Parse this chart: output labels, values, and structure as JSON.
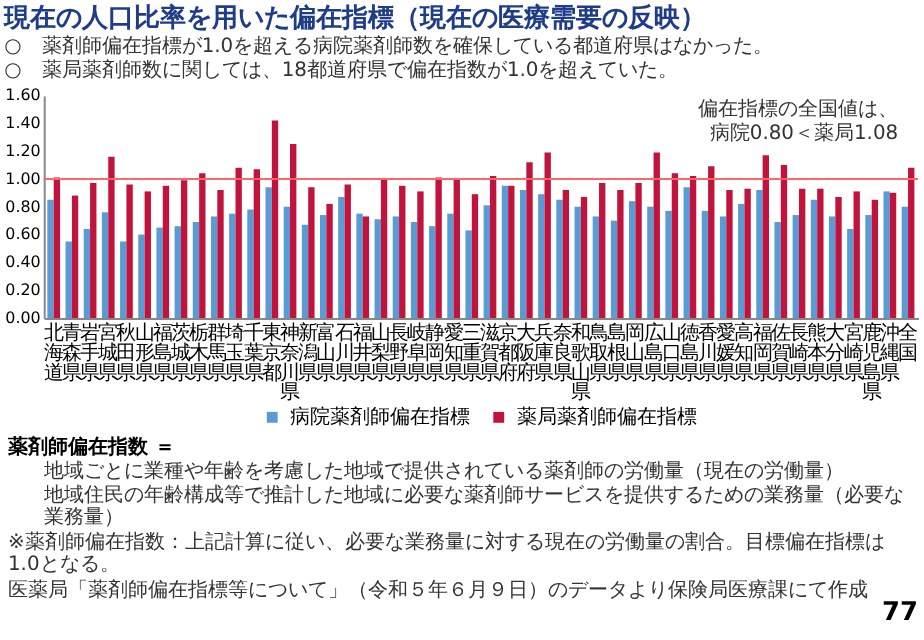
{
  "chart_data": {
    "type": "bar",
    "title": "現在の人口比率を用いた偏在指標（現在の医療需要の反映）",
    "subtitle": [
      "○　薬剤師偏在指標が1.0を超える病院薬剤師数を確保している都道府県はなかった。",
      "○　薬局薬剤師数に関しては、18都道府県で偏在指数が1.0を超えていた。"
    ],
    "categories": [
      "北海道",
      "青森県",
      "岩手県",
      "宮城県",
      "秋田県",
      "山形県",
      "福島県",
      "茨城県",
      "栃木県",
      "群馬県",
      "埼玉県",
      "千葉県",
      "東京都",
      "神奈川県",
      "新潟県",
      "富山県",
      "石川県",
      "福井県",
      "山梨県",
      "長野県",
      "岐阜県",
      "静岡県",
      "愛知県",
      "三重県",
      "滋賀県",
      "京都府",
      "大阪府",
      "兵庫県",
      "奈良県",
      "和歌山県",
      "鳥取県",
      "島根県",
      "岡山県",
      "広島県",
      "山口県",
      "徳島県",
      "香川県",
      "愛媛県",
      "高知県",
      "福岡県",
      "佐賀県",
      "長崎県",
      "熊本県",
      "大分県",
      "宮崎県",
      "鹿児島県",
      "沖縄県",
      "全国"
    ],
    "series": [
      {
        "name": "病院薬剤師偏在指標",
        "color": "#5b9bd5",
        "values": [
          0.85,
          0.55,
          0.64,
          0.76,
          0.55,
          0.6,
          0.65,
          0.66,
          0.69,
          0.73,
          0.75,
          0.78,
          0.94,
          0.8,
          0.67,
          0.74,
          0.87,
          0.75,
          0.71,
          0.73,
          0.69,
          0.66,
          0.75,
          0.63,
          0.81,
          0.95,
          0.92,
          0.89,
          0.85,
          0.8,
          0.73,
          0.7,
          0.84,
          0.8,
          0.77,
          0.94,
          0.77,
          0.73,
          0.82,
          0.92,
          0.69,
          0.74,
          0.85,
          0.73,
          0.64,
          0.74,
          0.91,
          0.8
        ]
      },
      {
        "name": "薬局薬剤師偏在指標",
        "color": "#c0143c",
        "values": [
          1.01,
          0.88,
          0.97,
          1.16,
          0.96,
          0.91,
          0.95,
          0.99,
          1.04,
          0.92,
          1.08,
          1.07,
          1.42,
          1.25,
          0.94,
          0.82,
          0.96,
          0.73,
          1.0,
          0.95,
          0.91,
          1.01,
          1.0,
          0.89,
          1.02,
          0.95,
          1.12,
          1.19,
          0.92,
          0.87,
          0.97,
          0.92,
          0.97,
          1.19,
          1.04,
          1.02,
          1.09,
          0.92,
          0.93,
          1.17,
          1.1,
          0.93,
          0.93,
          0.87,
          0.91,
          0.85,
          0.9,
          1.08
        ]
      }
    ],
    "ylim": [
      0,
      1.6
    ],
    "yticks": [
      {
        "value": 0,
        "label": "0.00"
      },
      {
        "value": 0.2,
        "label": "0.20"
      },
      {
        "value": 0.4,
        "label": "0.40"
      },
      {
        "value": 0.6,
        "label": "0.60"
      },
      {
        "value": 0.8,
        "label": "0.80"
      },
      {
        "value": 1.0,
        "label": "1.00"
      },
      {
        "value": 1.2,
        "label": "1.20"
      },
      {
        "value": 1.4,
        "label": "1.40"
      },
      {
        "value": 1.6,
        "label": "1.60"
      }
    ],
    "grid": false,
    "legend": "bottom",
    "ref_lines": [
      {
        "axis": "y",
        "value": 1.0,
        "color": "#ff6666"
      }
    ],
    "annotations": [
      "偏在指標の全国値は、",
      "病院0.80＜薬局1.08",
      "薬剤師偏在指数 ＝",
      "地域ごとに業種や年齢を考慮した地域で提供されている薬剤師の労働量（現在の労働量）",
      "地域住民の年齢構成等で推計した地域に必要な薬剤師サービスを提供するための業務量（必要な業務量）",
      "※薬剤師偏在指数：上記計算に従い、必要な業務量に対する現在の労働量の割合。目標偏在指標は1.0となる。",
      "医薬局「薬剤師偏在指標等について」（令和５年６月９日）のデータより保険局医療課にて作成",
      "77"
    ]
  }
}
